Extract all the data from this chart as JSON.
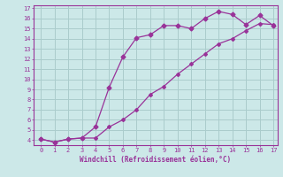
{
  "xlabel": "Windchill (Refroidissement éolien,°C)",
  "line1_x": [
    0,
    1,
    2,
    3,
    4,
    5,
    6,
    7,
    8,
    9,
    10,
    11,
    12,
    13,
    14,
    15,
    16,
    17
  ],
  "line1_y": [
    4.1,
    3.8,
    4.1,
    4.2,
    4.2,
    5.3,
    6.0,
    7.0,
    8.5,
    9.3,
    10.5,
    11.5,
    12.5,
    13.5,
    14.0,
    14.8,
    15.5,
    15.4
  ],
  "line2_x": [
    0,
    1,
    2,
    3,
    4,
    5,
    6,
    7,
    8,
    9,
    10,
    11,
    12,
    13,
    14,
    15,
    16,
    17
  ],
  "line2_y": [
    4.1,
    3.8,
    4.1,
    4.2,
    5.3,
    9.2,
    12.2,
    14.1,
    14.4,
    15.3,
    15.3,
    15.0,
    16.0,
    16.7,
    16.4,
    15.4,
    16.3,
    15.3
  ],
  "color": "#993399",
  "xlim": [
    -0.5,
    17.3
  ],
  "ylim": [
    3.5,
    17.3
  ],
  "xticks": [
    0,
    1,
    2,
    3,
    4,
    5,
    6,
    7,
    8,
    9,
    10,
    11,
    12,
    13,
    14,
    15,
    16,
    17
  ],
  "yticks": [
    4,
    5,
    6,
    7,
    8,
    9,
    10,
    11,
    12,
    13,
    14,
    15,
    16,
    17
  ],
  "background_color": "#cce8e8",
  "grid_color": "#aacccc"
}
